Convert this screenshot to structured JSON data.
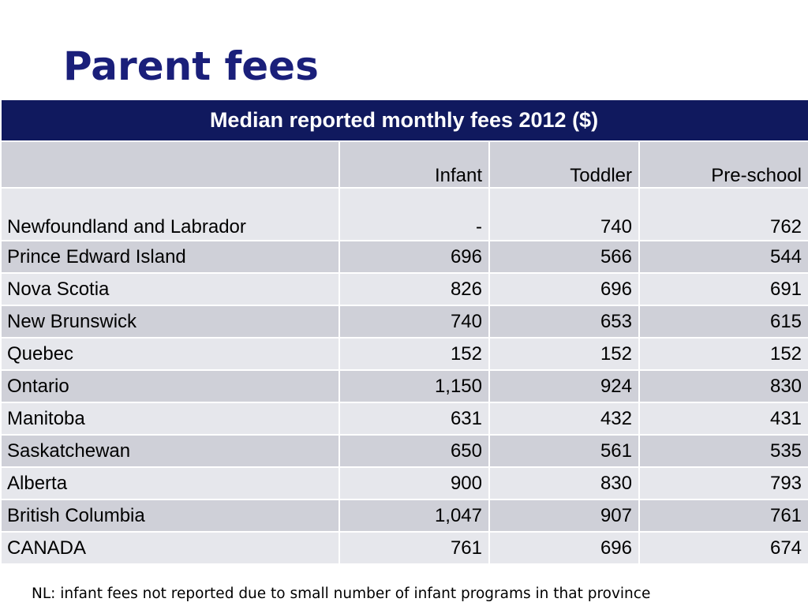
{
  "slide": {
    "title": "Parent fees",
    "note": "NL: infant fees not reported due to small number of infant programs in that province"
  },
  "table": {
    "caption": "Median reported monthly fees 2012 ($)",
    "headers": [
      "",
      "Infant",
      "Toddler",
      "Pre-school"
    ],
    "rows": [
      {
        "province": "Newfoundland and Labrador",
        "infant": "-",
        "toddler": "740",
        "preschool": "762"
      },
      {
        "province": "Prince Edward Island",
        "infant": "696",
        "toddler": "566",
        "preschool": "544"
      },
      {
        "province": "Nova Scotia",
        "infant": "826",
        "toddler": "696",
        "preschool": "691"
      },
      {
        "province": "New Brunswick",
        "infant": "740",
        "toddler": "653",
        "preschool": "615"
      },
      {
        "province": "Quebec",
        "infant": "152",
        "toddler": "152",
        "preschool": "152"
      },
      {
        "province": "Ontario",
        "infant": "1,150",
        "toddler": "924",
        "preschool": "830"
      },
      {
        "province": "Manitoba",
        "infant": "631",
        "toddler": "432",
        "preschool": "431"
      },
      {
        "province": "Saskatchewan",
        "infant": "650",
        "toddler": "561",
        "preschool": "535"
      },
      {
        "province": "Alberta",
        "infant": "900",
        "toddler": "830",
        "preschool": "793"
      },
      {
        "province": "British Columbia",
        "infant": "1,047",
        "toddler": "907",
        "preschool": "761"
      },
      {
        "province": "CANADA",
        "infant": "761",
        "toddler": "696",
        "preschool": "674"
      }
    ]
  },
  "colors": {
    "title": "#1a1f7a",
    "caption_bg": "#10195e",
    "row_dark": "#cfd0d8",
    "row_light": "#e6e7ec"
  }
}
